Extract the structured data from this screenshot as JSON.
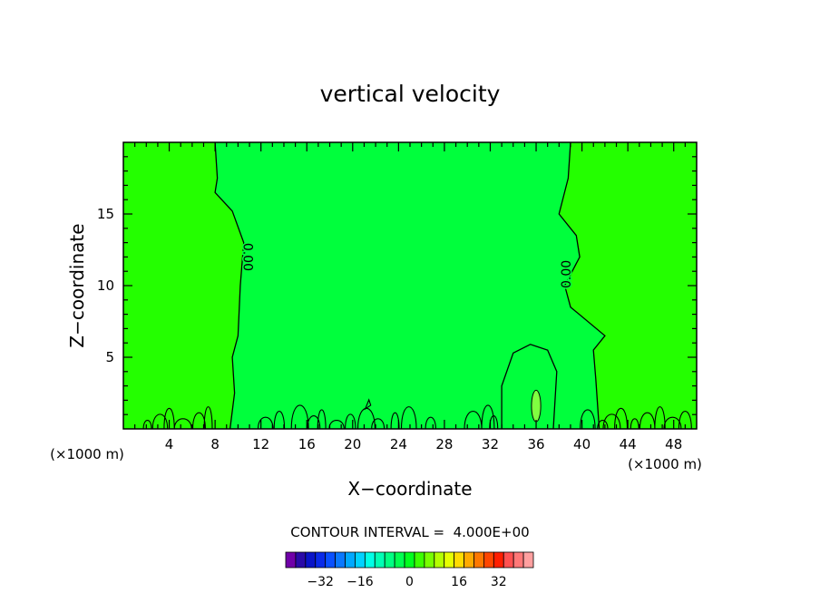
{
  "chart_data": {
    "type": "contour",
    "title": "vertical velocity",
    "xlabel": "X−coordinate",
    "ylabel": "Z−coordinate",
    "x_unit": "(×1000 m)",
    "y_unit": "(×1000 m)",
    "xlim": [
      0,
      50
    ],
    "ylim": [
      0,
      20
    ],
    "x_ticks": [
      4,
      8,
      12,
      16,
      20,
      24,
      28,
      32,
      36,
      40,
      44,
      48
    ],
    "y_ticks": [
      5,
      10,
      15
    ],
    "x_tick_labels": [
      "4",
      "8",
      "12",
      "16",
      "20",
      "24",
      "28",
      "32",
      "36",
      "40",
      "44",
      "48"
    ],
    "y_tick_labels": [
      "5",
      "10",
      "15"
    ],
    "contour_labels": [
      {
        "text": "0.00",
        "x": 10.8,
        "z": 12.0
      },
      {
        "text": "0.00",
        "x": 38.7,
        "z": 10.8
      }
    ],
    "zero_contour_left": [
      [
        8.0,
        20.0
      ],
      [
        8.2,
        17.5
      ],
      [
        8.0,
        16.5
      ],
      [
        9.5,
        15.2
      ],
      [
        10.5,
        13.0
      ],
      [
        10.2,
        10.0
      ],
      [
        10.0,
        6.5
      ],
      [
        9.5,
        5.0
      ],
      [
        9.7,
        2.5
      ],
      [
        9.3,
        0
      ]
    ],
    "zero_contour_right": [
      [
        39.0,
        20.0
      ],
      [
        38.8,
        17.5
      ],
      [
        38.0,
        15.0
      ],
      [
        39.5,
        13.5
      ],
      [
        39.8,
        12.0
      ],
      [
        38.5,
        10.0
      ],
      [
        39.0,
        8.5
      ],
      [
        42.0,
        6.5
      ],
      [
        41.0,
        5.5
      ],
      [
        41.2,
        3.5
      ],
      [
        41.5,
        0
      ]
    ],
    "updraft_contour": [
      [
        33.0,
        0
      ],
      [
        33.0,
        3.0
      ],
      [
        34.0,
        5.3
      ],
      [
        35.5,
        5.9
      ],
      [
        37.0,
        5.5
      ],
      [
        37.8,
        4.0
      ],
      [
        37.5,
        0
      ]
    ],
    "updraft_core": {
      "x": 36.0,
      "z": 1.6,
      "half_width": 0.4,
      "half_height": 1.1
    },
    "regions": [
      {
        "zone": "left",
        "color": "#24ff00"
      },
      {
        "zone": "middle",
        "color": "#00ff3c"
      },
      {
        "zone": "right",
        "color": "#24ff00"
      },
      {
        "zone": "updraft",
        "color": "#00ff3c"
      },
      {
        "zone": "updraft core",
        "color": "#80ff40"
      }
    ],
    "contour_interval_text": "CONTOUR INTERVAL =  4.000E+00",
    "colorbar": {
      "colors": [
        "#7000a8",
        "#2a0aa8",
        "#0a14c8",
        "#0a2ae8",
        "#0a50ff",
        "#0a78ff",
        "#00a8ff",
        "#00d2ff",
        "#00ffe6",
        "#00ffb4",
        "#00ff82",
        "#00ff50",
        "#00ff1e",
        "#3cff00",
        "#78ff00",
        "#b4ff00",
        "#e6ff00",
        "#ffdc00",
        "#ffaa00",
        "#ff7800",
        "#ff4600",
        "#ff1e00",
        "#ff5050",
        "#ff7878",
        "#ffa0a0"
      ],
      "tick_labels": [
        "−32",
        "−16",
        "0",
        "16",
        "32"
      ]
    }
  }
}
